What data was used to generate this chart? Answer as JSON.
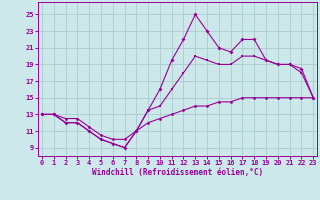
{
  "xlabel": "Windchill (Refroidissement éolien,°C)",
  "background_color": "#cce8ea",
  "grid_color": "#aacccc",
  "line_color": "#990099",
  "x_ticks": [
    0,
    1,
    2,
    3,
    4,
    5,
    6,
    7,
    8,
    9,
    10,
    11,
    12,
    13,
    14,
    15,
    16,
    17,
    18,
    19,
    20,
    21,
    22,
    23
  ],
  "y_ticks": [
    9,
    11,
    13,
    15,
    17,
    19,
    21,
    23,
    25
  ],
  "xlim": [
    -0.3,
    23.3
  ],
  "ylim": [
    8.0,
    26.5
  ],
  "line_peak_x": [
    0,
    1,
    2,
    3,
    4,
    5,
    6,
    7,
    8,
    9,
    10,
    11,
    12,
    13,
    14,
    15,
    16,
    17,
    18,
    19,
    20,
    21,
    22,
    23
  ],
  "line_peak_y": [
    13,
    13,
    12,
    12,
    11,
    10,
    9.5,
    9,
    11,
    13.5,
    16,
    19.5,
    22,
    25,
    23,
    21,
    20.5,
    22,
    22,
    19.5,
    19,
    19,
    18.5,
    15
  ],
  "line_mid_x": [
    0,
    1,
    2,
    3,
    4,
    5,
    6,
    7,
    8,
    9,
    10,
    11,
    12,
    13,
    14,
    15,
    16,
    17,
    18,
    19,
    20,
    21,
    22,
    23
  ],
  "line_mid_y": [
    13,
    13,
    12,
    12,
    11,
    10,
    9.5,
    9,
    11,
    13.5,
    14,
    16,
    18,
    20,
    19.5,
    19,
    19,
    20,
    20,
    19.5,
    19,
    19,
    18,
    15
  ],
  "line_low_x": [
    0,
    1,
    2,
    3,
    4,
    5,
    6,
    7,
    8,
    9,
    10,
    11,
    12,
    13,
    14,
    15,
    16,
    17,
    18,
    19,
    20,
    21,
    22,
    23
  ],
  "line_low_y": [
    13,
    13,
    12.5,
    12.5,
    11.5,
    10.5,
    10,
    10,
    11,
    12,
    12.5,
    13,
    13.5,
    14,
    14,
    14.5,
    14.5,
    15,
    15,
    15,
    15,
    15,
    15,
    15
  ]
}
